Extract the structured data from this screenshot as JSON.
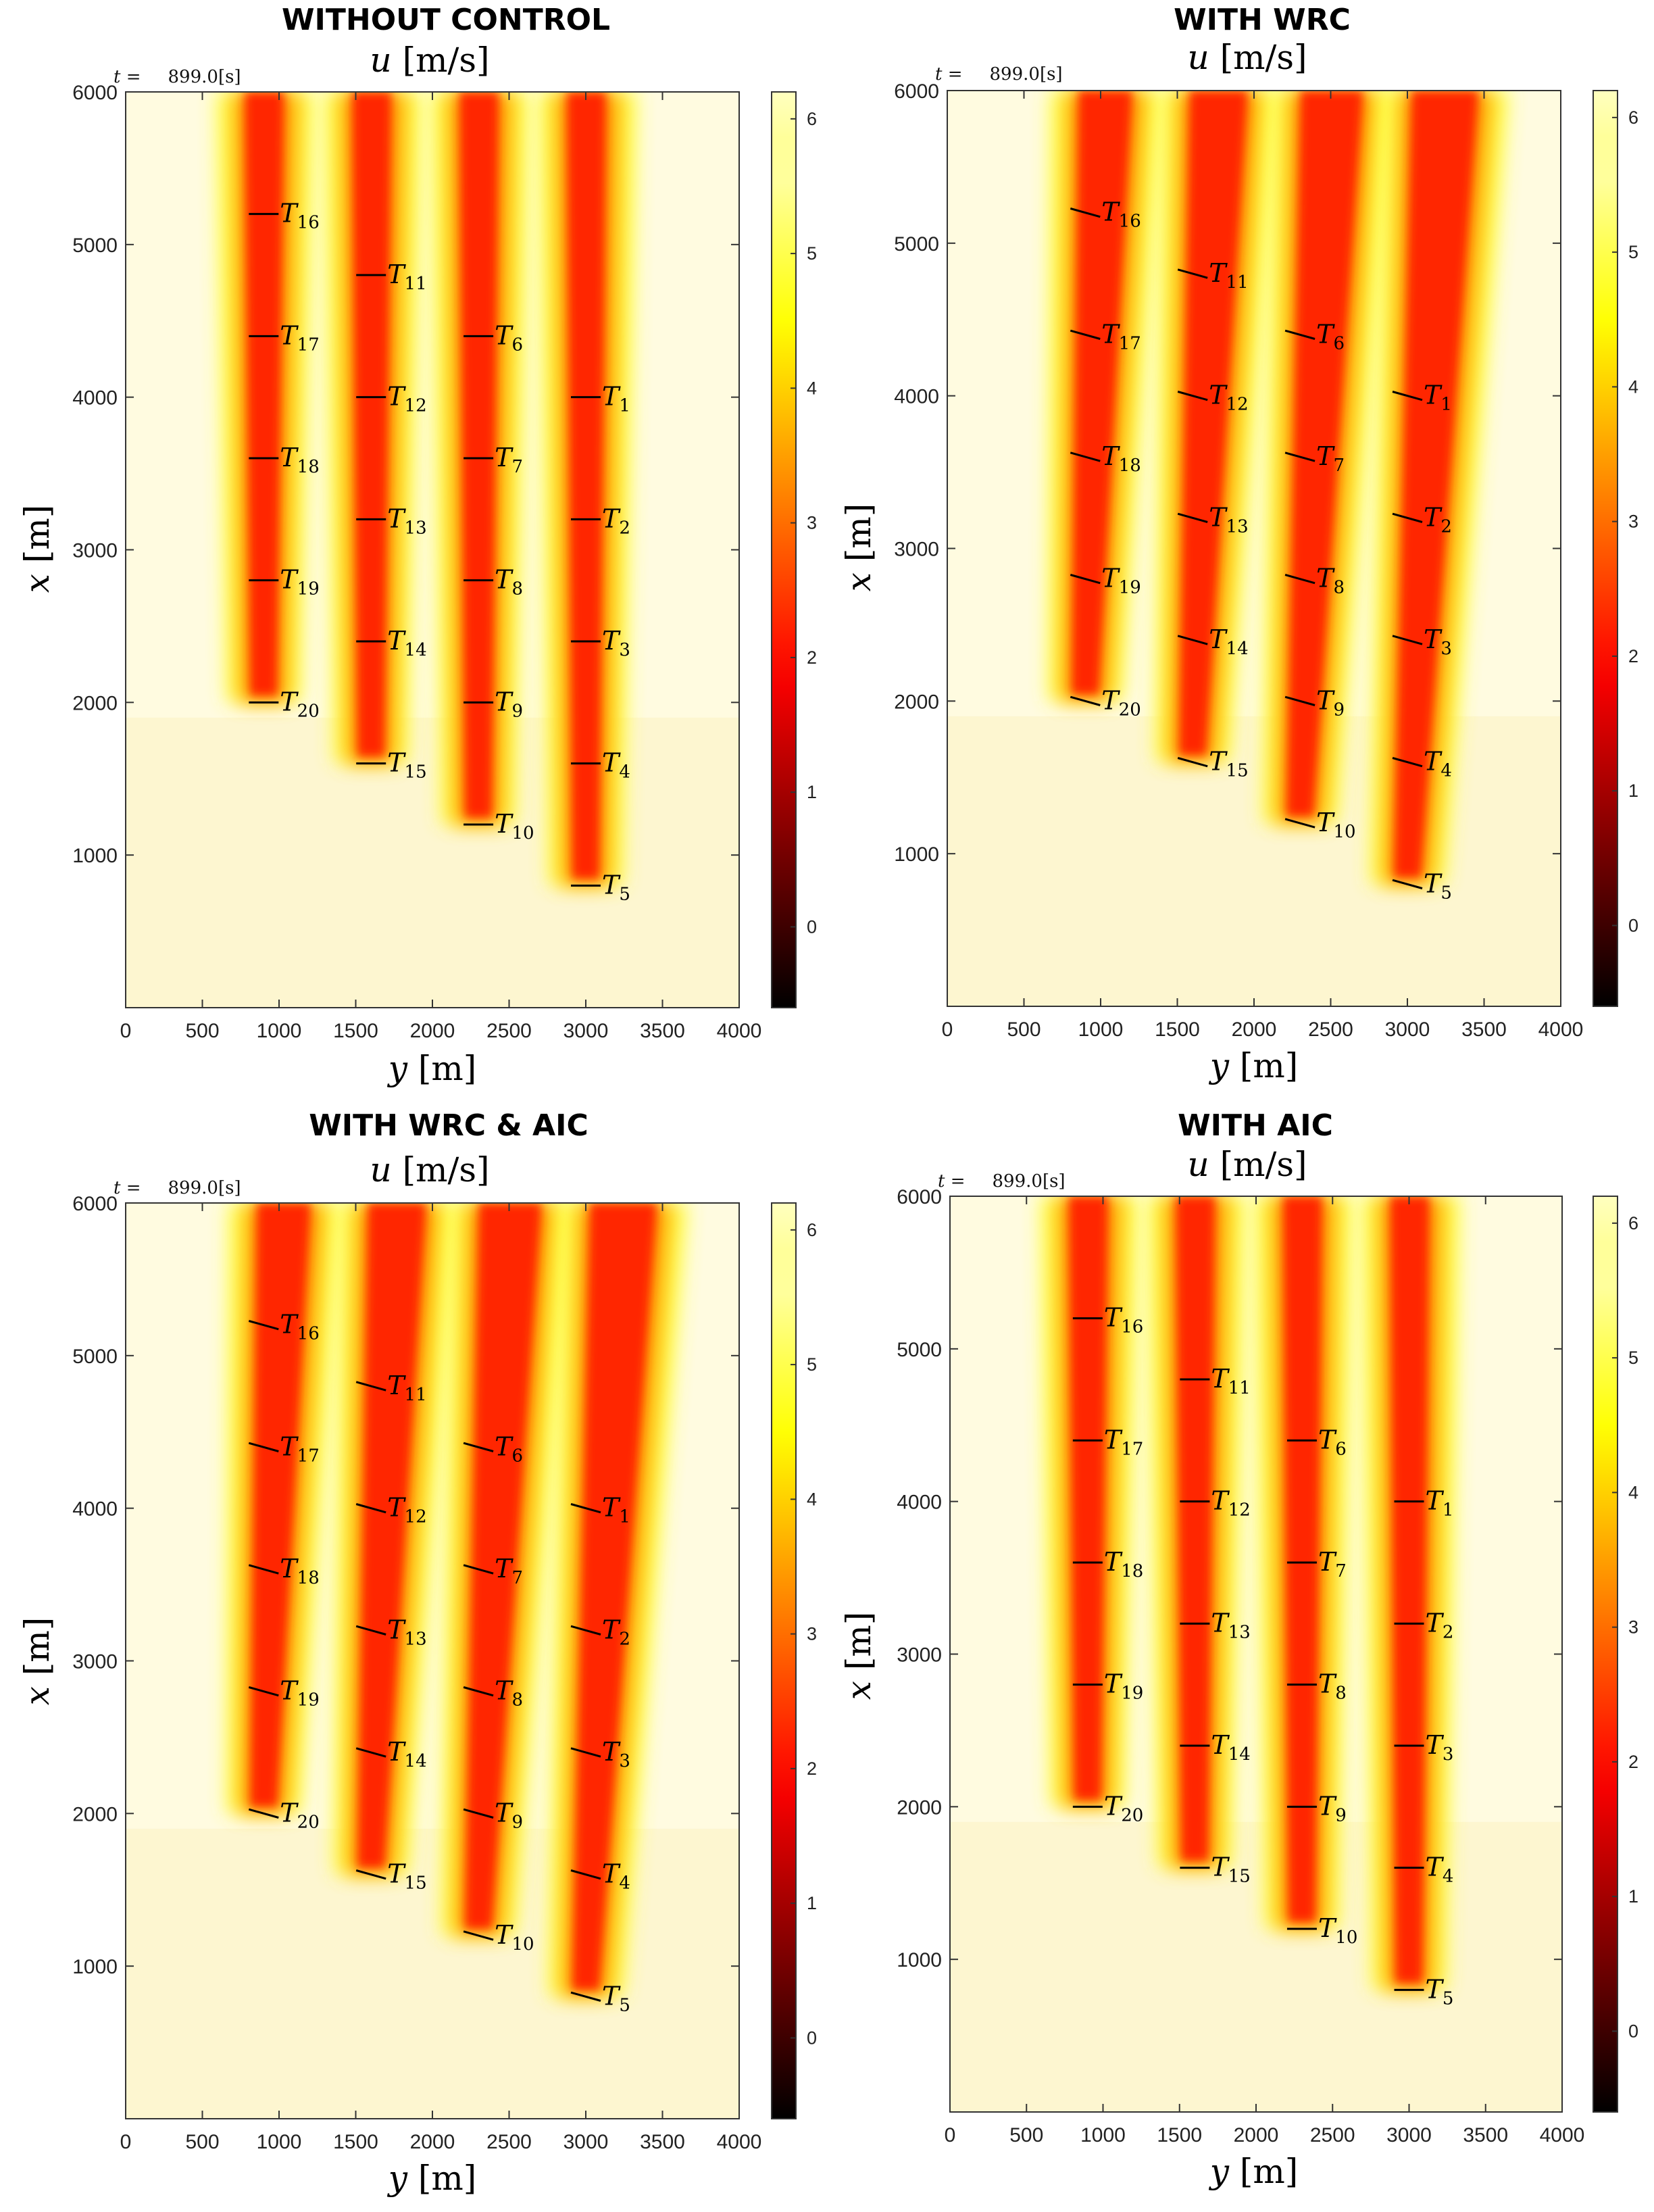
{
  "chart_data": [
    {
      "type": "heatmap",
      "title": "WITHOUT CONTROL",
      "subtitle_var": "u",
      "subtitle_unit": "[m/s]",
      "time_label": "t =",
      "time_value": "899.0[s]",
      "xlabel_var": "y",
      "xlabel_unit": "[m]",
      "ylabel_var": "x",
      "ylabel_unit": "[m]",
      "xlim": [
        0,
        4000
      ],
      "ylim": [
        0,
        6000
      ],
      "xticks": [
        0,
        500,
        1000,
        1500,
        2000,
        2500,
        3000,
        3500,
        4000
      ],
      "yticks": [
        1000,
        2000,
        3000,
        4000,
        5000,
        6000
      ],
      "colorbar_range": [
        -0.6,
        6.2
      ],
      "colorbar_ticks": [
        0,
        1,
        2,
        3,
        4,
        5,
        6
      ],
      "colormap": "hot",
      "turbines": [
        {
          "id": "1",
          "y": 3000,
          "x": 4000
        },
        {
          "id": "2",
          "y": 3000,
          "x": 3200
        },
        {
          "id": "3",
          "y": 3000,
          "x": 2400
        },
        {
          "id": "4",
          "y": 3000,
          "x": 1600
        },
        {
          "id": "5",
          "y": 3000,
          "x": 800
        },
        {
          "id": "6",
          "y": 2300,
          "x": 4400
        },
        {
          "id": "7",
          "y": 2300,
          "x": 3600
        },
        {
          "id": "8",
          "y": 2300,
          "x": 2800
        },
        {
          "id": "9",
          "y": 2300,
          "x": 2000
        },
        {
          "id": "10",
          "y": 2300,
          "x": 1200
        },
        {
          "id": "11",
          "y": 1600,
          "x": 4800
        },
        {
          "id": "12",
          "y": 1600,
          "x": 4000
        },
        {
          "id": "13",
          "y": 1600,
          "x": 3200
        },
        {
          "id": "14",
          "y": 1600,
          "x": 2400
        },
        {
          "id": "15",
          "y": 1600,
          "x": 1600
        },
        {
          "id": "16",
          "y": 900,
          "x": 5200
        },
        {
          "id": "17",
          "y": 900,
          "x": 4400
        },
        {
          "id": "18",
          "y": 900,
          "x": 3600
        },
        {
          "id": "19",
          "y": 900,
          "x": 2800
        },
        {
          "id": "20",
          "y": 900,
          "x": 2000
        }
      ],
      "yaw_offset_deg": 0
    },
    {
      "type": "heatmap",
      "title": "WITH WRC",
      "subtitle_var": "u",
      "subtitle_unit": "[m/s]",
      "time_label": "t =",
      "time_value": "899.0[s]",
      "xlabel_var": "y",
      "xlabel_unit": "[m]",
      "ylabel_var": "x",
      "ylabel_unit": "[m]",
      "xlim": [
        0,
        4000
      ],
      "ylim": [
        0,
        6000
      ],
      "xticks": [
        0,
        500,
        1000,
        1500,
        2000,
        2500,
        3000,
        3500,
        4000
      ],
      "yticks": [
        1000,
        2000,
        3000,
        4000,
        5000,
        6000
      ],
      "colorbar_range": [
        -0.6,
        6.2
      ],
      "colorbar_ticks": [
        0,
        1,
        2,
        3,
        4,
        5,
        6
      ],
      "colormap": "hot",
      "turbines": [
        {
          "id": "1",
          "y": 3000,
          "x": 4000
        },
        {
          "id": "2",
          "y": 3000,
          "x": 3200
        },
        {
          "id": "3",
          "y": 3000,
          "x": 2400
        },
        {
          "id": "4",
          "y": 3000,
          "x": 1600
        },
        {
          "id": "5",
          "y": 3000,
          "x": 800
        },
        {
          "id": "6",
          "y": 2300,
          "x": 4400
        },
        {
          "id": "7",
          "y": 2300,
          "x": 3600
        },
        {
          "id": "8",
          "y": 2300,
          "x": 2800
        },
        {
          "id": "9",
          "y": 2300,
          "x": 2000
        },
        {
          "id": "10",
          "y": 2300,
          "x": 1200
        },
        {
          "id": "11",
          "y": 1600,
          "x": 4800
        },
        {
          "id": "12",
          "y": 1600,
          "x": 4000
        },
        {
          "id": "13",
          "y": 1600,
          "x": 3200
        },
        {
          "id": "14",
          "y": 1600,
          "x": 2400
        },
        {
          "id": "15",
          "y": 1600,
          "x": 1600
        },
        {
          "id": "16",
          "y": 900,
          "x": 5200
        },
        {
          "id": "17",
          "y": 900,
          "x": 4400
        },
        {
          "id": "18",
          "y": 900,
          "x": 3600
        },
        {
          "id": "19",
          "y": 900,
          "x": 2800
        },
        {
          "id": "20",
          "y": 900,
          "x": 2000
        }
      ],
      "yaw_offset_deg": 8
    },
    {
      "type": "heatmap",
      "title": "WITH WRC & AIC",
      "subtitle_var": "u",
      "subtitle_unit": "[m/s]",
      "time_label": "t =",
      "time_value": "899.0[s]",
      "xlabel_var": "y",
      "xlabel_unit": "[m]",
      "ylabel_var": "x",
      "ylabel_unit": "[m]",
      "xlim": [
        0,
        4000
      ],
      "ylim": [
        0,
        6000
      ],
      "xticks": [
        0,
        500,
        1000,
        1500,
        2000,
        2500,
        3000,
        3500,
        4000
      ],
      "yticks": [
        1000,
        2000,
        3000,
        4000,
        5000,
        6000
      ],
      "colorbar_range": [
        -0.6,
        6.2
      ],
      "colorbar_ticks": [
        0,
        1,
        2,
        3,
        4,
        5,
        6
      ],
      "colormap": "hot",
      "turbines": [
        {
          "id": "1",
          "y": 3000,
          "x": 4000
        },
        {
          "id": "2",
          "y": 3000,
          "x": 3200
        },
        {
          "id": "3",
          "y": 3000,
          "x": 2400
        },
        {
          "id": "4",
          "y": 3000,
          "x": 1600
        },
        {
          "id": "5",
          "y": 3000,
          "x": 800
        },
        {
          "id": "6",
          "y": 2300,
          "x": 4400
        },
        {
          "id": "7",
          "y": 2300,
          "x": 3600
        },
        {
          "id": "8",
          "y": 2300,
          "x": 2800
        },
        {
          "id": "9",
          "y": 2300,
          "x": 2000
        },
        {
          "id": "10",
          "y": 2300,
          "x": 1200
        },
        {
          "id": "11",
          "y": 1600,
          "x": 4800
        },
        {
          "id": "12",
          "y": 1600,
          "x": 4000
        },
        {
          "id": "13",
          "y": 1600,
          "x": 3200
        },
        {
          "id": "14",
          "y": 1600,
          "x": 2400
        },
        {
          "id": "15",
          "y": 1600,
          "x": 1600
        },
        {
          "id": "16",
          "y": 900,
          "x": 5200
        },
        {
          "id": "17",
          "y": 900,
          "x": 4400
        },
        {
          "id": "18",
          "y": 900,
          "x": 3600
        },
        {
          "id": "19",
          "y": 900,
          "x": 2800
        },
        {
          "id": "20",
          "y": 900,
          "x": 2000
        }
      ],
      "yaw_offset_deg": 8
    },
    {
      "type": "heatmap",
      "title": "WITH AIC",
      "subtitle_var": "u",
      "subtitle_unit": "[m/s]",
      "time_label": "t =",
      "time_value": "899.0[s]",
      "xlabel_var": "y",
      "xlabel_unit": "[m]",
      "ylabel_var": "x",
      "ylabel_unit": "[m]",
      "xlim": [
        0,
        4000
      ],
      "ylim": [
        0,
        6000
      ],
      "xticks": [
        0,
        500,
        1000,
        1500,
        2000,
        2500,
        3000,
        3500,
        4000
      ],
      "yticks": [
        1000,
        2000,
        3000,
        4000,
        5000,
        6000
      ],
      "colorbar_range": [
        -0.6,
        6.2
      ],
      "colorbar_ticks": [
        0,
        1,
        2,
        3,
        4,
        5,
        6
      ],
      "colormap": "hot",
      "turbines": [
        {
          "id": "1",
          "y": 3000,
          "x": 4000
        },
        {
          "id": "2",
          "y": 3000,
          "x": 3200
        },
        {
          "id": "3",
          "y": 3000,
          "x": 2400
        },
        {
          "id": "4",
          "y": 3000,
          "x": 1600
        },
        {
          "id": "5",
          "y": 3000,
          "x": 800
        },
        {
          "id": "6",
          "y": 2300,
          "x": 4400
        },
        {
          "id": "7",
          "y": 2300,
          "x": 3600
        },
        {
          "id": "8",
          "y": 2300,
          "x": 2800
        },
        {
          "id": "9",
          "y": 2300,
          "x": 2000
        },
        {
          "id": "10",
          "y": 2300,
          "x": 1200
        },
        {
          "id": "11",
          "y": 1600,
          "x": 4800
        },
        {
          "id": "12",
          "y": 1600,
          "x": 4000
        },
        {
          "id": "13",
          "y": 1600,
          "x": 3200
        },
        {
          "id": "14",
          "y": 1600,
          "x": 2400
        },
        {
          "id": "15",
          "y": 1600,
          "x": 1600
        },
        {
          "id": "16",
          "y": 900,
          "x": 5200
        },
        {
          "id": "17",
          "y": 900,
          "x": 4400
        },
        {
          "id": "18",
          "y": 900,
          "x": 3600
        },
        {
          "id": "19",
          "y": 900,
          "x": 2800
        },
        {
          "id": "20",
          "y": 900,
          "x": 2000
        }
      ],
      "yaw_offset_deg": 0
    }
  ]
}
